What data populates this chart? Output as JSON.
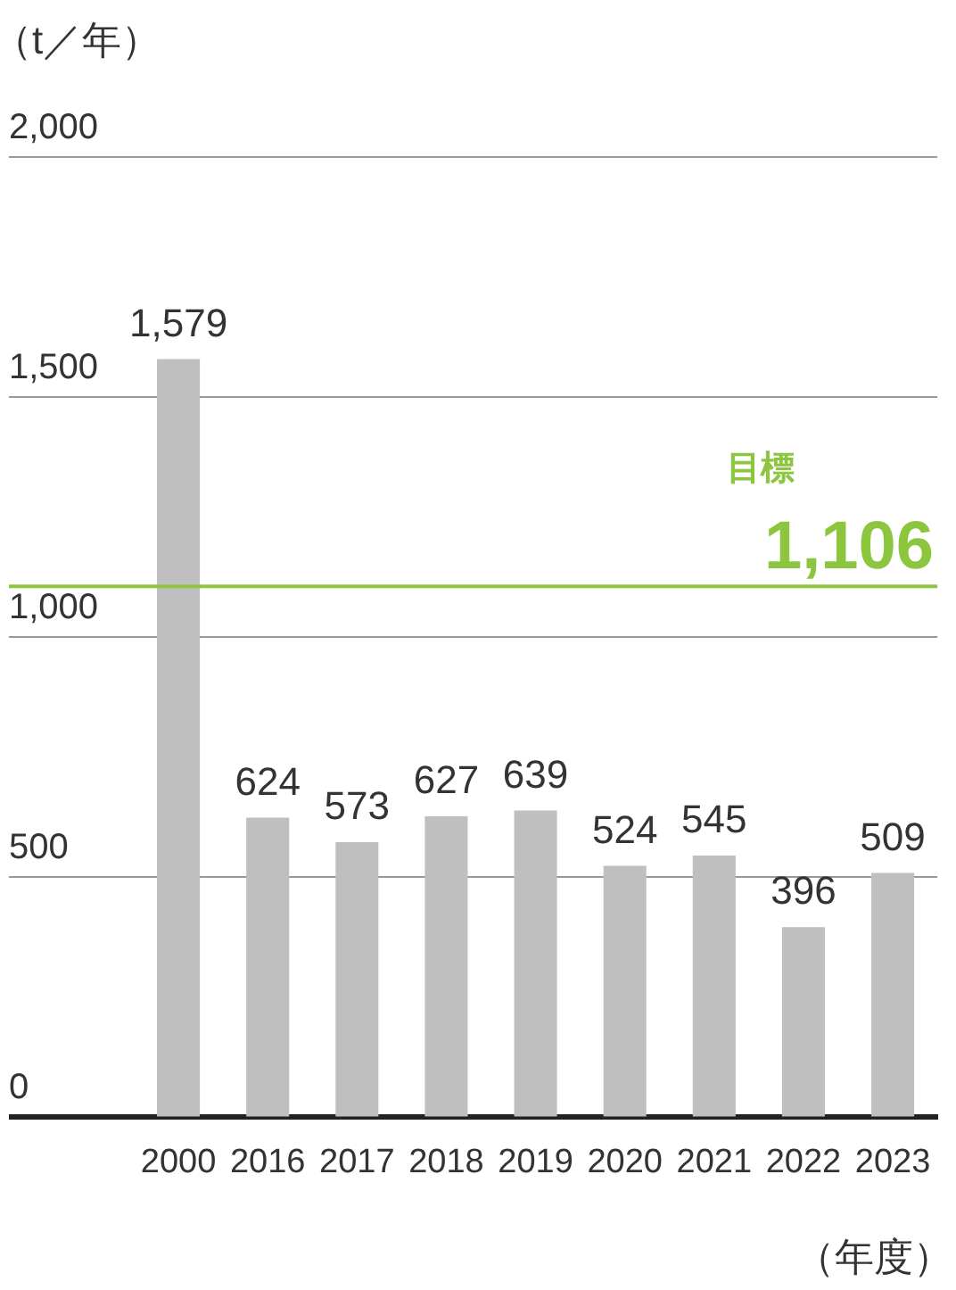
{
  "chart_data": {
    "type": "bar",
    "ylabel": "（t／年）",
    "xlabel": "（年度）",
    "categories": [
      "2000",
      "2016",
      "2017",
      "2018",
      "2019",
      "2020",
      "2021",
      "2022",
      "2023"
    ],
    "values": [
      1579,
      624,
      573,
      627,
      639,
      524,
      545,
      396,
      509
    ],
    "color": "#bfbfbf",
    "ylim": [
      0,
      2000
    ],
    "yticks": [
      0,
      {
        "value": 500,
        "label": "500"
      },
      {
        "value": 1000,
        "label": "1,000"
      },
      {
        "value": 1500,
        "label": "1,500"
      },
      {
        "value": 2000,
        "label": "2,000"
      }
    ],
    "grid": "y",
    "value_labels": [
      "1,579",
      "624",
      "573",
      "627",
      "639",
      "524",
      "545",
      "396",
      "509"
    ],
    "annotations": [
      {
        "text": "1,106",
        "y": 1106
      }
    ],
    "ref_lines": [
      {
        "axis": "y",
        "value": 1106,
        "label": "目標",
        "color": "#8cc63f"
      }
    ]
  }
}
